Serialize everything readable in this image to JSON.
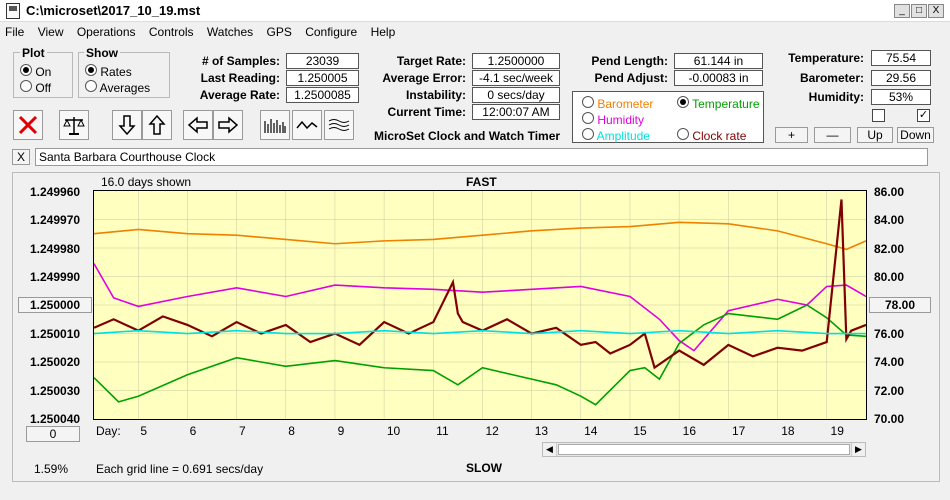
{
  "window": {
    "title": "C:\\microset\\2017_10_19.mst",
    "min_glyph": "_",
    "max_glyph": "□",
    "close_glyph": "X"
  },
  "menu": [
    "File",
    "View",
    "Operations",
    "Controls",
    "Watches",
    "GPS",
    "Configure",
    "Help"
  ],
  "plot_group": {
    "label": "Plot",
    "options": [
      {
        "label": "On",
        "selected": true
      },
      {
        "label": "Off",
        "selected": false
      }
    ]
  },
  "show_group": {
    "label": "Show",
    "options": [
      {
        "label": "Rates",
        "selected": true
      },
      {
        "label": "Averages",
        "selected": false
      }
    ]
  },
  "stats": [
    {
      "label": "# of Samples:",
      "value": "23039"
    },
    {
      "label": "Last Reading:",
      "value": "1.250005"
    },
    {
      "label": "Average Rate:",
      "value": "1.2500085"
    }
  ],
  "targets": [
    {
      "label": "Target Rate:",
      "value": "1.2500000"
    },
    {
      "label": "Average Error:",
      "value": "-4.1 sec/week"
    },
    {
      "label": "Instability:",
      "value": "0 secs/day"
    },
    {
      "label": "Current Time:",
      "value": "12:00:07 AM"
    }
  ],
  "pendulum": [
    {
      "label": "Pend Length:",
      "value": "61.144 in"
    },
    {
      "label": "Pend Adjust:",
      "value": "-0.00083 in"
    }
  ],
  "env": [
    {
      "label": "Temperature:",
      "value": "75.54"
    },
    {
      "label": "Barometer:",
      "value": "29.56"
    },
    {
      "label": "Humidity:",
      "value": "53%"
    }
  ],
  "env_checks": [
    false,
    true
  ],
  "env_buttons": [
    "+",
    "—",
    "Up",
    "Down"
  ],
  "app_caption": "MicroSet Clock and Watch Timer",
  "sensor_options": [
    {
      "label": "Barometer",
      "selected": false,
      "color": "#f08000"
    },
    {
      "label": "Temperature",
      "selected": true,
      "color": "#00a000"
    },
    {
      "label": "Humidity",
      "selected": false,
      "color": "#e000e0"
    },
    {
      "label": "Clock rate",
      "selected": false,
      "color": "#800000"
    },
    {
      "label": "Amplitude",
      "selected": false,
      "color": "#00e0e0"
    }
  ],
  "clock_name": {
    "close_glyph": "X",
    "value": "Santa Barbara Courthouse Clock"
  },
  "plot": {
    "days_shown": "16.0 days shown",
    "top_label": "FAST",
    "bottom_label": "SLOW",
    "left_ticks": [
      "1.249960",
      "1.249970",
      "1.249980",
      "1.249990",
      "1.250000",
      "1.250010",
      "1.250020",
      "1.250030",
      "1.250040"
    ],
    "right_ticks": [
      "86.00",
      "84.00",
      "82.00",
      "80.00",
      "78.00",
      "76.00",
      "74.00",
      "72.00",
      "70.00"
    ],
    "left_button": "1.250000",
    "right_button": "78.00",
    "zero_button": "0",
    "day_label": "Day:",
    "days": [
      "5",
      "6",
      "7",
      "8",
      "9",
      "10",
      "11",
      "12",
      "13",
      "14",
      "15",
      "16",
      "17",
      "18",
      "19"
    ],
    "percent": "1.59%",
    "grid_note": "Each grid line = 0.691 secs/day"
  },
  "chart_data": {
    "type": "line",
    "x_label": "Day:",
    "xlim": [
      4.1,
      19.8
    ],
    "left_axis": {
      "ylim": [
        1.24996,
        1.25004
      ],
      "reversed": true
    },
    "right_axis": {
      "ylim": [
        70,
        86
      ]
    },
    "series": [
      {
        "name": "Barometer",
        "color": "#f08000",
        "axis": "right",
        "x": [
          4.1,
          5,
          6,
          7,
          8,
          9,
          10,
          11,
          12,
          13,
          14,
          15,
          16,
          17,
          18,
          19,
          19.4,
          19.8
        ],
        "y": [
          83.0,
          83.3,
          83.0,
          82.9,
          82.6,
          82.3,
          82.5,
          82.6,
          82.9,
          83.2,
          83.4,
          83.5,
          83.8,
          83.7,
          83.2,
          82.3,
          81.9,
          82.5
        ]
      },
      {
        "name": "Humidity",
        "color": "#e000e0",
        "axis": "right",
        "x": [
          4.1,
          4.5,
          5,
          6,
          7,
          8,
          9,
          10,
          11,
          12,
          13,
          14,
          15,
          15.6,
          16,
          16.3,
          17,
          18,
          18.6,
          19,
          19.4,
          19.8
        ],
        "y": [
          80.9,
          78.5,
          77.9,
          78.6,
          79.2,
          78.6,
          79.4,
          79.2,
          79.1,
          78.9,
          79.1,
          79.3,
          78.6,
          77.0,
          75.5,
          74.8,
          77.6,
          78.4,
          78.0,
          79.3,
          79.4,
          78.6
        ]
      },
      {
        "name": "Temperature",
        "color": "#00a000",
        "axis": "right",
        "x": [
          4.1,
          4.6,
          5,
          6,
          7,
          8,
          9,
          10,
          11,
          11.5,
          12,
          13,
          13.5,
          14,
          14.3,
          15,
          15.3,
          15.6,
          16,
          16.5,
          17,
          17.5,
          18,
          18.6,
          19,
          19.4,
          19.8
        ],
        "y": [
          72.9,
          71.2,
          71.6,
          73.1,
          74.3,
          73.7,
          74.1,
          73.6,
          73.4,
          72.4,
          73.6,
          72.8,
          72.4,
          71.6,
          71.0,
          73.4,
          73.6,
          72.8,
          75.3,
          76.6,
          77.4,
          77.2,
          77.0,
          78.0,
          77.1,
          75.9,
          75.8
        ]
      },
      {
        "name": "Clock rate",
        "color": "#800000",
        "axis": "left",
        "x": [
          4.1,
          4.5,
          5,
          5.5,
          6,
          6.5,
          7,
          7.5,
          8,
          8.5,
          9,
          9.5,
          10,
          10.5,
          11,
          11.4,
          11.5,
          11.6,
          12,
          12.5,
          13,
          13.5,
          14,
          14.3,
          14.6,
          15,
          15.3,
          15.5,
          16,
          16.5,
          17,
          17.5,
          18,
          18.5,
          19,
          19.3,
          19.4,
          19.5,
          19.8
        ],
        "y": [
          1.250008,
          1.250005,
          1.250009,
          1.250004,
          1.250007,
          1.250011,
          1.250006,
          1.25001,
          1.250007,
          1.250013,
          1.25001,
          1.250014,
          1.250006,
          1.25001,
          1.250006,
          1.249992,
          1.250003,
          1.250006,
          1.250009,
          1.250005,
          1.25001,
          1.250008,
          1.250014,
          1.250013,
          1.250017,
          1.250014,
          1.25001,
          1.250022,
          1.250016,
          1.250021,
          1.250014,
          1.250018,
          1.250015,
          1.250016,
          1.250013,
          1.249963,
          1.250012,
          1.250009,
          1.250007
        ]
      },
      {
        "name": "Amplitude",
        "color": "#00e0e0",
        "axis": "left",
        "x": [
          4.1,
          5,
          6,
          7,
          8,
          9,
          10,
          11,
          12,
          13,
          14,
          15,
          16,
          17,
          18,
          19,
          19.8
        ],
        "y": [
          1.25001,
          1.250009,
          1.25001,
          1.250009,
          1.25001,
          1.25001,
          1.250009,
          1.25001,
          1.250009,
          1.25001,
          1.250009,
          1.25001,
          1.250009,
          1.25001,
          1.250009,
          1.25001,
          1.25001
        ]
      }
    ]
  }
}
